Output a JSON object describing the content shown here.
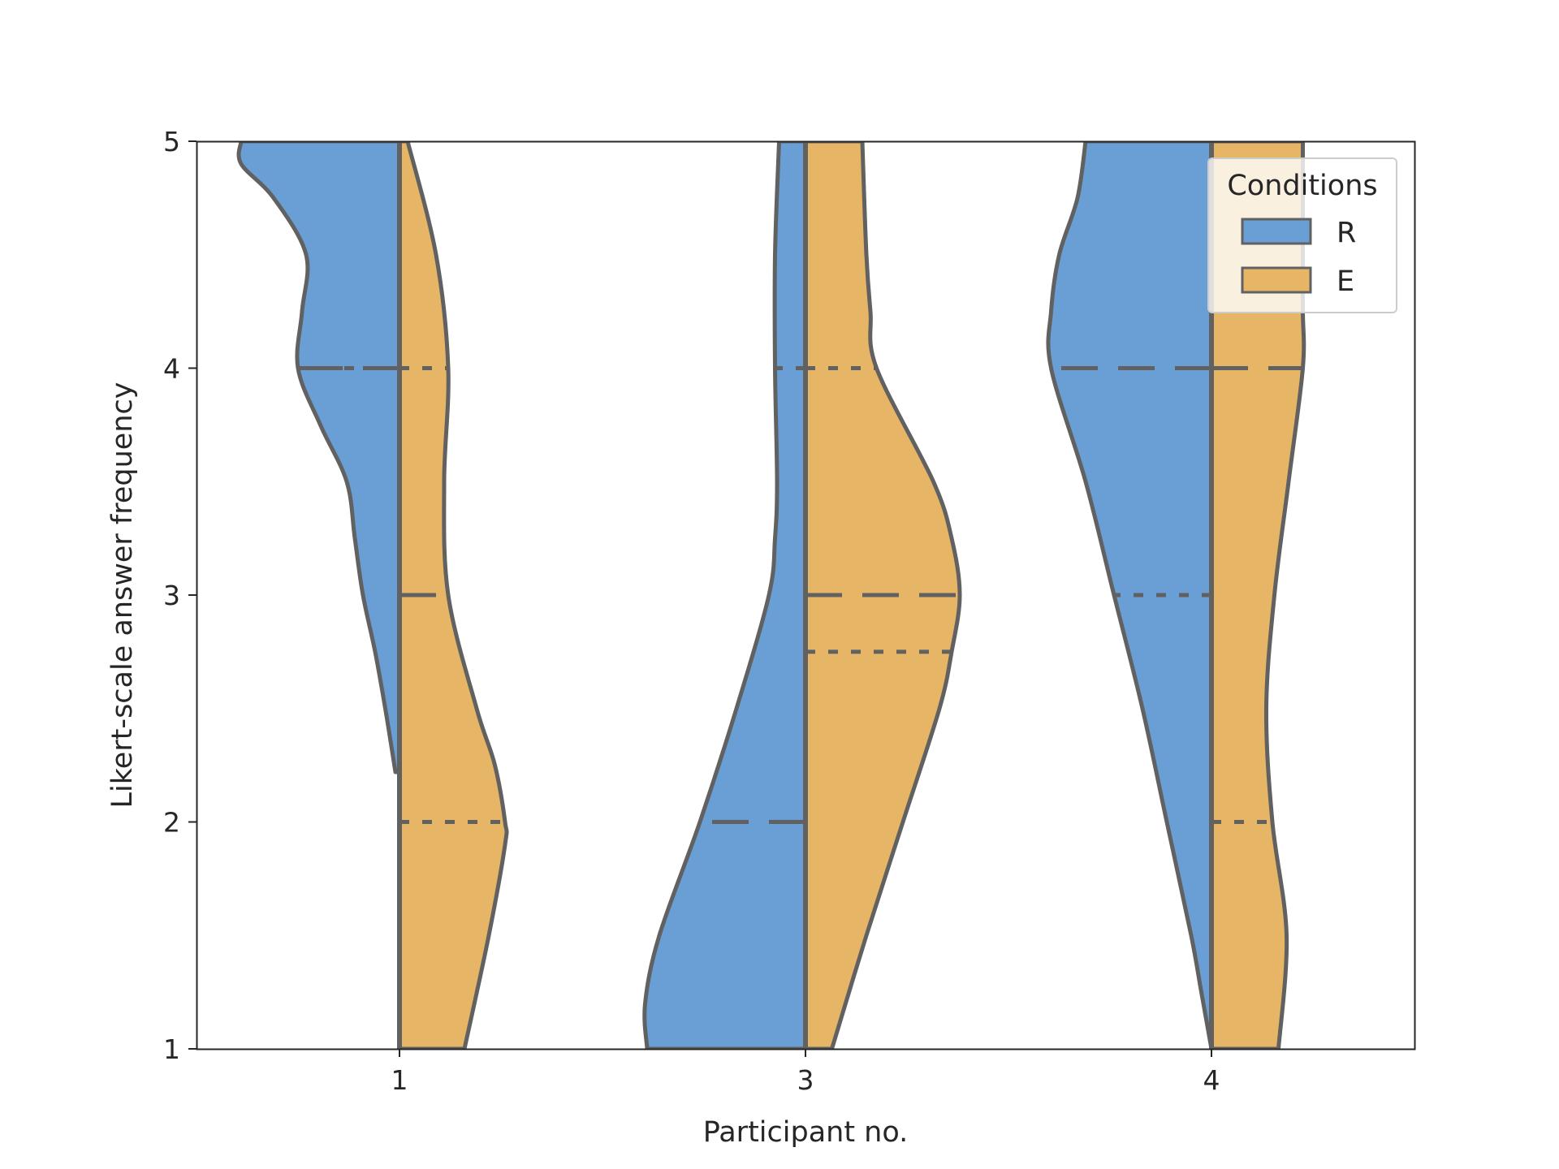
{
  "chart_data": {
    "type": "violin",
    "split": true,
    "inner": "quartile",
    "xlabel": "Participant no.",
    "ylabel": "Likert-scale answer frequency",
    "categories": [
      "1",
      "3",
      "4"
    ],
    "ylim": [
      1,
      5
    ],
    "yticks": [
      1,
      2,
      3,
      4,
      5
    ],
    "grid": false,
    "legend": {
      "title": "Conditions",
      "placement": "top-right"
    },
    "colors": {
      "R": "#6a9fd6",
      "E": "#e6b566",
      "outline": "#616161",
      "axis": "#262626"
    },
    "series": [
      {
        "name": "R",
        "violins": [
          {
            "category": "1",
            "ymin": 2.22,
            "ymax": 5.0,
            "quartiles": [
              4.0,
              4.0,
              5.0
            ],
            "profile": [
              [
                2.22,
                0.02
              ],
              [
                2.5,
                0.07
              ],
              [
                2.75,
                0.12
              ],
              [
                3.0,
                0.18
              ],
              [
                3.25,
                0.22
              ],
              [
                3.5,
                0.26
              ],
              [
                3.75,
                0.39
              ],
              [
                4.0,
                0.5
              ],
              [
                4.25,
                0.48
              ],
              [
                4.5,
                0.46
              ],
              [
                4.75,
                0.62
              ],
              [
                4.9,
                0.78
              ],
              [
                5.0,
                0.78
              ]
            ]
          },
          {
            "category": "3",
            "ymin": 1.0,
            "ymax": 5.0,
            "quartiles": [
              1.0,
              2.0,
              4.0
            ],
            "profile": [
              [
                1.0,
                0.78
              ],
              [
                1.2,
                0.79
              ],
              [
                1.5,
                0.72
              ],
              [
                2.0,
                0.52
              ],
              [
                2.5,
                0.34
              ],
              [
                3.0,
                0.18
              ],
              [
                3.25,
                0.15
              ],
              [
                3.5,
                0.14
              ],
              [
                4.0,
                0.15
              ],
              [
                4.5,
                0.15
              ],
              [
                5.0,
                0.13
              ]
            ]
          },
          {
            "category": "4",
            "ymin": 1.0,
            "ymax": 5.0,
            "quartiles": [
              3.0,
              4.0,
              5.0
            ],
            "profile": [
              [
                1.0,
                0.0
              ],
              [
                1.25,
                0.05
              ],
              [
                1.5,
                0.1
              ],
              [
                2.0,
                0.22
              ],
              [
                2.5,
                0.34
              ],
              [
                3.0,
                0.48
              ],
              [
                3.5,
                0.62
              ],
              [
                4.0,
                0.79
              ],
              [
                4.25,
                0.79
              ],
              [
                4.5,
                0.75
              ],
              [
                4.75,
                0.66
              ],
              [
                5.0,
                0.62
              ]
            ]
          }
        ]
      },
      {
        "name": "E",
        "violins": [
          {
            "category": "1",
            "ymin": 1.0,
            "ymax": 5.0,
            "quartiles": [
              2.0,
              3.0,
              4.0
            ],
            "profile": [
              [
                1.0,
                0.32
              ],
              [
                1.5,
                0.44
              ],
              [
                1.9,
                0.52
              ],
              [
                2.0,
                0.52
              ],
              [
                2.25,
                0.47
              ],
              [
                2.5,
                0.38
              ],
              [
                3.0,
                0.24
              ],
              [
                3.5,
                0.22
              ],
              [
                4.0,
                0.24
              ],
              [
                4.5,
                0.18
              ],
              [
                5.0,
                0.04
              ]
            ]
          },
          {
            "category": "3",
            "ymin": 1.0,
            "ymax": 5.0,
            "quartiles": [
              2.75,
              3.0,
              4.0
            ],
            "profile": [
              [
                1.0,
                0.13
              ],
              [
                1.5,
                0.3
              ],
              [
                2.0,
                0.48
              ],
              [
                2.5,
                0.66
              ],
              [
                2.75,
                0.72
              ],
              [
                3.0,
                0.76
              ],
              [
                3.25,
                0.72
              ],
              [
                3.5,
                0.63
              ],
              [
                4.0,
                0.35
              ],
              [
                4.25,
                0.32
              ],
              [
                4.5,
                0.3
              ],
              [
                5.0,
                0.28
              ]
            ]
          },
          {
            "category": "4",
            "ymin": 1.0,
            "ymax": 5.0,
            "quartiles": [
              2.0,
              4.0,
              5.0
            ],
            "profile": [
              [
                1.0,
                0.33
              ],
              [
                1.5,
                0.37
              ],
              [
                2.0,
                0.3
              ],
              [
                2.5,
                0.27
              ],
              [
                3.0,
                0.31
              ],
              [
                3.5,
                0.38
              ],
              [
                4.0,
                0.45
              ],
              [
                4.25,
                0.45
              ],
              [
                4.5,
                0.45
              ],
              [
                4.75,
                0.45
              ],
              [
                5.0,
                0.45
              ]
            ]
          }
        ]
      }
    ]
  }
}
